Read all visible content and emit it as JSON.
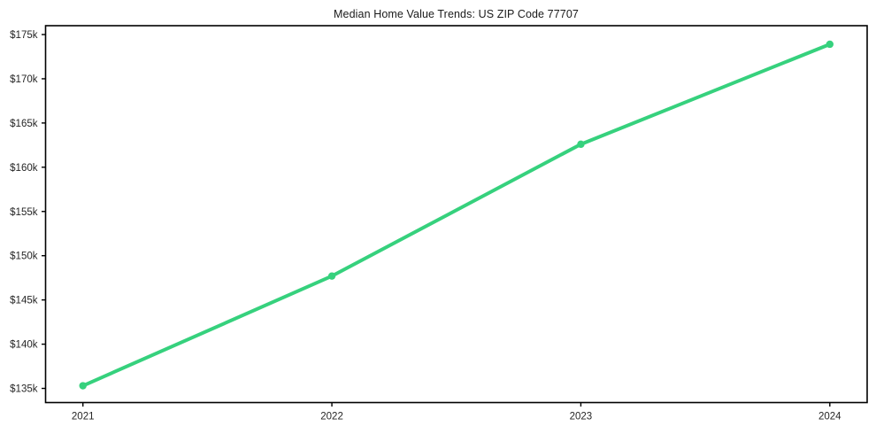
{
  "chart_data": {
    "type": "line",
    "title": "Median Home Value Trends: US ZIP Code 77707",
    "series_name": "Median Home Value",
    "categories": [
      2021,
      2022,
      2023,
      2024
    ],
    "values": [
      135300,
      147700,
      162600,
      173900
    ],
    "x_tick_labels": [
      "2021",
      "2022",
      "2023",
      "2024"
    ],
    "y_ticks": [
      {
        "value": 135000,
        "label": "$135k"
      },
      {
        "value": 140000,
        "label": "$140k"
      },
      {
        "value": 145000,
        "label": "$145k"
      },
      {
        "value": 150000,
        "label": "$150k"
      },
      {
        "value": 155000,
        "label": "$155k"
      },
      {
        "value": 160000,
        "label": "$160k"
      },
      {
        "value": 165000,
        "label": "$165k"
      },
      {
        "value": 170000,
        "label": "$170k"
      },
      {
        "value": 175000,
        "label": "$175k"
      }
    ],
    "xlabel": "",
    "ylabel": "",
    "xlim": [
      2020.85,
      2024.15
    ],
    "ylim": [
      133400,
      176000
    ],
    "grid": false,
    "legend": "none",
    "line_color": "#36d17d",
    "marker": "circle",
    "axis_color": "#000000",
    "text_color": "#262626",
    "background_color": "#ffffff"
  }
}
